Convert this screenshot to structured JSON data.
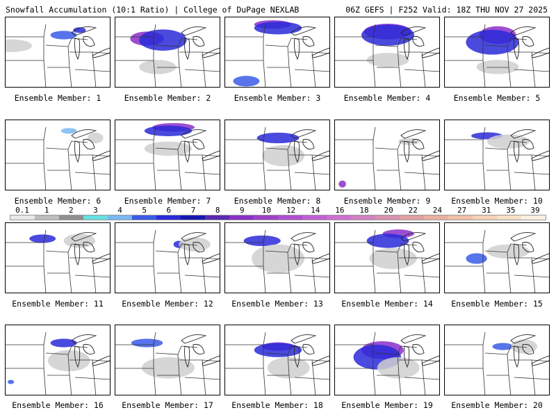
{
  "header": {
    "left": "Snowfall Accumulation (10:1 Ratio) | College of DuPage NEXLAB",
    "right": "06Z GEFS | F252 Valid: 18Z THU NOV 27 2025"
  },
  "panels": [
    {
      "label": "Ensemble Member: 1",
      "snow": [
        [
          0.05,
          0.4,
          0.4,
          0.18,
          "#cfcfcf"
        ],
        [
          0.55,
          0.25,
          0.25,
          0.12,
          "#3a5ce6"
        ],
        [
          0.7,
          0.18,
          0.12,
          0.08,
          "#2a2ad9"
        ]
      ]
    },
    {
      "label": "Ensemble Member: 2",
      "snow": [
        [
          0.3,
          0.3,
          0.32,
          0.2,
          "#8b2fc9"
        ],
        [
          0.45,
          0.32,
          0.45,
          0.3,
          "#2a2ad9"
        ],
        [
          0.4,
          0.7,
          0.35,
          0.2,
          "#cfcfcf"
        ]
      ]
    },
    {
      "label": "Ensemble Member: 3",
      "snow": [
        [
          0.45,
          0.1,
          0.35,
          0.12,
          "#8b2fc9"
        ],
        [
          0.5,
          0.15,
          0.45,
          0.18,
          "#2a2ad9"
        ],
        [
          0.2,
          0.9,
          0.25,
          0.15,
          "#3a5ce6"
        ]
      ]
    },
    {
      "label": "Ensemble Member: 4",
      "snow": [
        [
          0.5,
          0.2,
          0.45,
          0.22,
          "#8b2fc9"
        ],
        [
          0.5,
          0.25,
          0.5,
          0.3,
          "#2a2ad9"
        ],
        [
          0.5,
          0.6,
          0.4,
          0.2,
          "#cfcfcf"
        ]
      ]
    },
    {
      "label": "Ensemble Member: 5",
      "snow": [
        [
          0.5,
          0.25,
          0.35,
          0.25,
          "#8b2fc9"
        ],
        [
          0.45,
          0.35,
          0.5,
          0.35,
          "#2a2ad9"
        ],
        [
          0.5,
          0.7,
          0.4,
          0.2,
          "#cfcfcf"
        ]
      ]
    },
    {
      "label": "Ensemble Member: 6",
      "snow": [
        [
          0.6,
          0.15,
          0.15,
          0.08,
          "#7ab8f0"
        ],
        [
          0.85,
          0.25,
          0.15,
          0.15,
          "#cfcfcf"
        ]
      ]
    },
    {
      "label": "Ensemble Member: 7",
      "snow": [
        [
          0.55,
          0.1,
          0.4,
          0.12,
          "#8b2fc9"
        ],
        [
          0.5,
          0.15,
          0.45,
          0.15,
          "#2a2ad9"
        ],
        [
          0.5,
          0.4,
          0.45,
          0.2,
          "#cfcfcf"
        ]
      ]
    },
    {
      "label": "Ensemble Member: 8",
      "snow": [
        [
          0.5,
          0.25,
          0.4,
          0.15,
          "#2a2ad9"
        ],
        [
          0.55,
          0.5,
          0.4,
          0.3,
          "#cfcfcf"
        ]
      ]
    },
    {
      "label": "Ensemble Member: 9",
      "snow": [
        [
          0.07,
          0.9,
          0.07,
          0.1,
          "#8b2fc9"
        ],
        [
          0.7,
          0.3,
          0.2,
          0.1,
          "#cfcfcf"
        ]
      ]
    },
    {
      "label": "Ensemble Member: 10",
      "snow": [
        [
          0.4,
          0.22,
          0.3,
          0.1,
          "#2a2ad9"
        ],
        [
          0.6,
          0.3,
          0.4,
          0.2,
          "#cfcfcf"
        ]
      ]
    },
    {
      "label": "Ensemble Member: 11",
      "snow": [
        [
          0.35,
          0.22,
          0.25,
          0.12,
          "#2a2ad9"
        ],
        [
          0.7,
          0.25,
          0.3,
          0.2,
          "#cfcfcf"
        ]
      ]
    },
    {
      "label": "Ensemble Member: 12",
      "snow": [
        [
          0.6,
          0.3,
          0.1,
          0.1,
          "#2a2ad9"
        ],
        [
          0.75,
          0.3,
          0.3,
          0.2,
          "#cfcfcf"
        ]
      ]
    },
    {
      "label": "Ensemble Member: 13",
      "snow": [
        [
          0.35,
          0.25,
          0.35,
          0.15,
          "#2a2ad9"
        ],
        [
          0.5,
          0.5,
          0.5,
          0.4,
          "#cfcfcf"
        ]
      ]
    },
    {
      "label": "Ensemble Member: 14",
      "snow": [
        [
          0.6,
          0.15,
          0.3,
          0.12,
          "#8b2fc9"
        ],
        [
          0.5,
          0.25,
          0.4,
          0.2,
          "#2a2ad9"
        ],
        [
          0.55,
          0.5,
          0.45,
          0.3,
          "#cfcfcf"
        ]
      ]
    },
    {
      "label": "Ensemble Member: 15",
      "snow": [
        [
          0.3,
          0.5,
          0.2,
          0.15,
          "#3a5ce6"
        ],
        [
          0.6,
          0.4,
          0.4,
          0.2,
          "#cfcfcf"
        ]
      ]
    },
    {
      "label": "Ensemble Member: 16",
      "snow": [
        [
          0.55,
          0.25,
          0.25,
          0.12,
          "#2a2ad9"
        ],
        [
          0.05,
          0.8,
          0.06,
          0.06,
          "#3a5ce6"
        ],
        [
          0.6,
          0.5,
          0.4,
          0.3,
          "#cfcfcf"
        ]
      ]
    },
    {
      "label": "Ensemble Member: 17",
      "snow": [
        [
          0.3,
          0.25,
          0.3,
          0.12,
          "#3a5ce6"
        ],
        [
          0.5,
          0.6,
          0.5,
          0.3,
          "#cfcfcf"
        ]
      ]
    },
    {
      "label": "Ensemble Member: 18",
      "snow": [
        [
          0.5,
          0.3,
          0.3,
          0.12,
          "#8b2fc9"
        ],
        [
          0.5,
          0.35,
          0.45,
          0.2,
          "#2a2ad9"
        ],
        [
          0.6,
          0.6,
          0.4,
          0.3,
          "#cfcfcf"
        ]
      ]
    },
    {
      "label": "Ensemble Member: 19",
      "snow": [
        [
          0.45,
          0.35,
          0.4,
          0.25,
          "#8b2fc9"
        ],
        [
          0.4,
          0.45,
          0.45,
          0.35,
          "#2a2ad9"
        ],
        [
          0.6,
          0.6,
          0.4,
          0.3,
          "#cfcfcf"
        ]
      ]
    },
    {
      "label": "Ensemble Member: 20",
      "snow": [
        [
          0.55,
          0.3,
          0.2,
          0.1,
          "#3a5ce6"
        ],
        [
          0.75,
          0.3,
          0.25,
          0.2,
          "#cfcfcf"
        ]
      ]
    }
  ],
  "colorbar": {
    "ticks": [
      "0.1",
      "1",
      "2",
      "3",
      "4",
      "5",
      "6",
      "7",
      "8",
      "9",
      "10",
      "12",
      "14",
      "16",
      "18",
      "20",
      "22",
      "24",
      "27",
      "31",
      "35",
      "39"
    ],
    "colors": [
      "#e8e8e8",
      "#bdbdbd",
      "#8f8f8f",
      "#66e0e0",
      "#7ab8f0",
      "#3a5ce6",
      "#2a2ad9",
      "#1818b0",
      "#5a2ab0",
      "#8b2fc9",
      "#a040c8",
      "#b050d0",
      "#c060d8",
      "#d070d0",
      "#d080c0",
      "#d890b0",
      "#e0a0a0",
      "#e8b0a0",
      "#f0c0a8",
      "#f4d0b8",
      "#f8e0c8",
      "#fcefe0"
    ]
  }
}
